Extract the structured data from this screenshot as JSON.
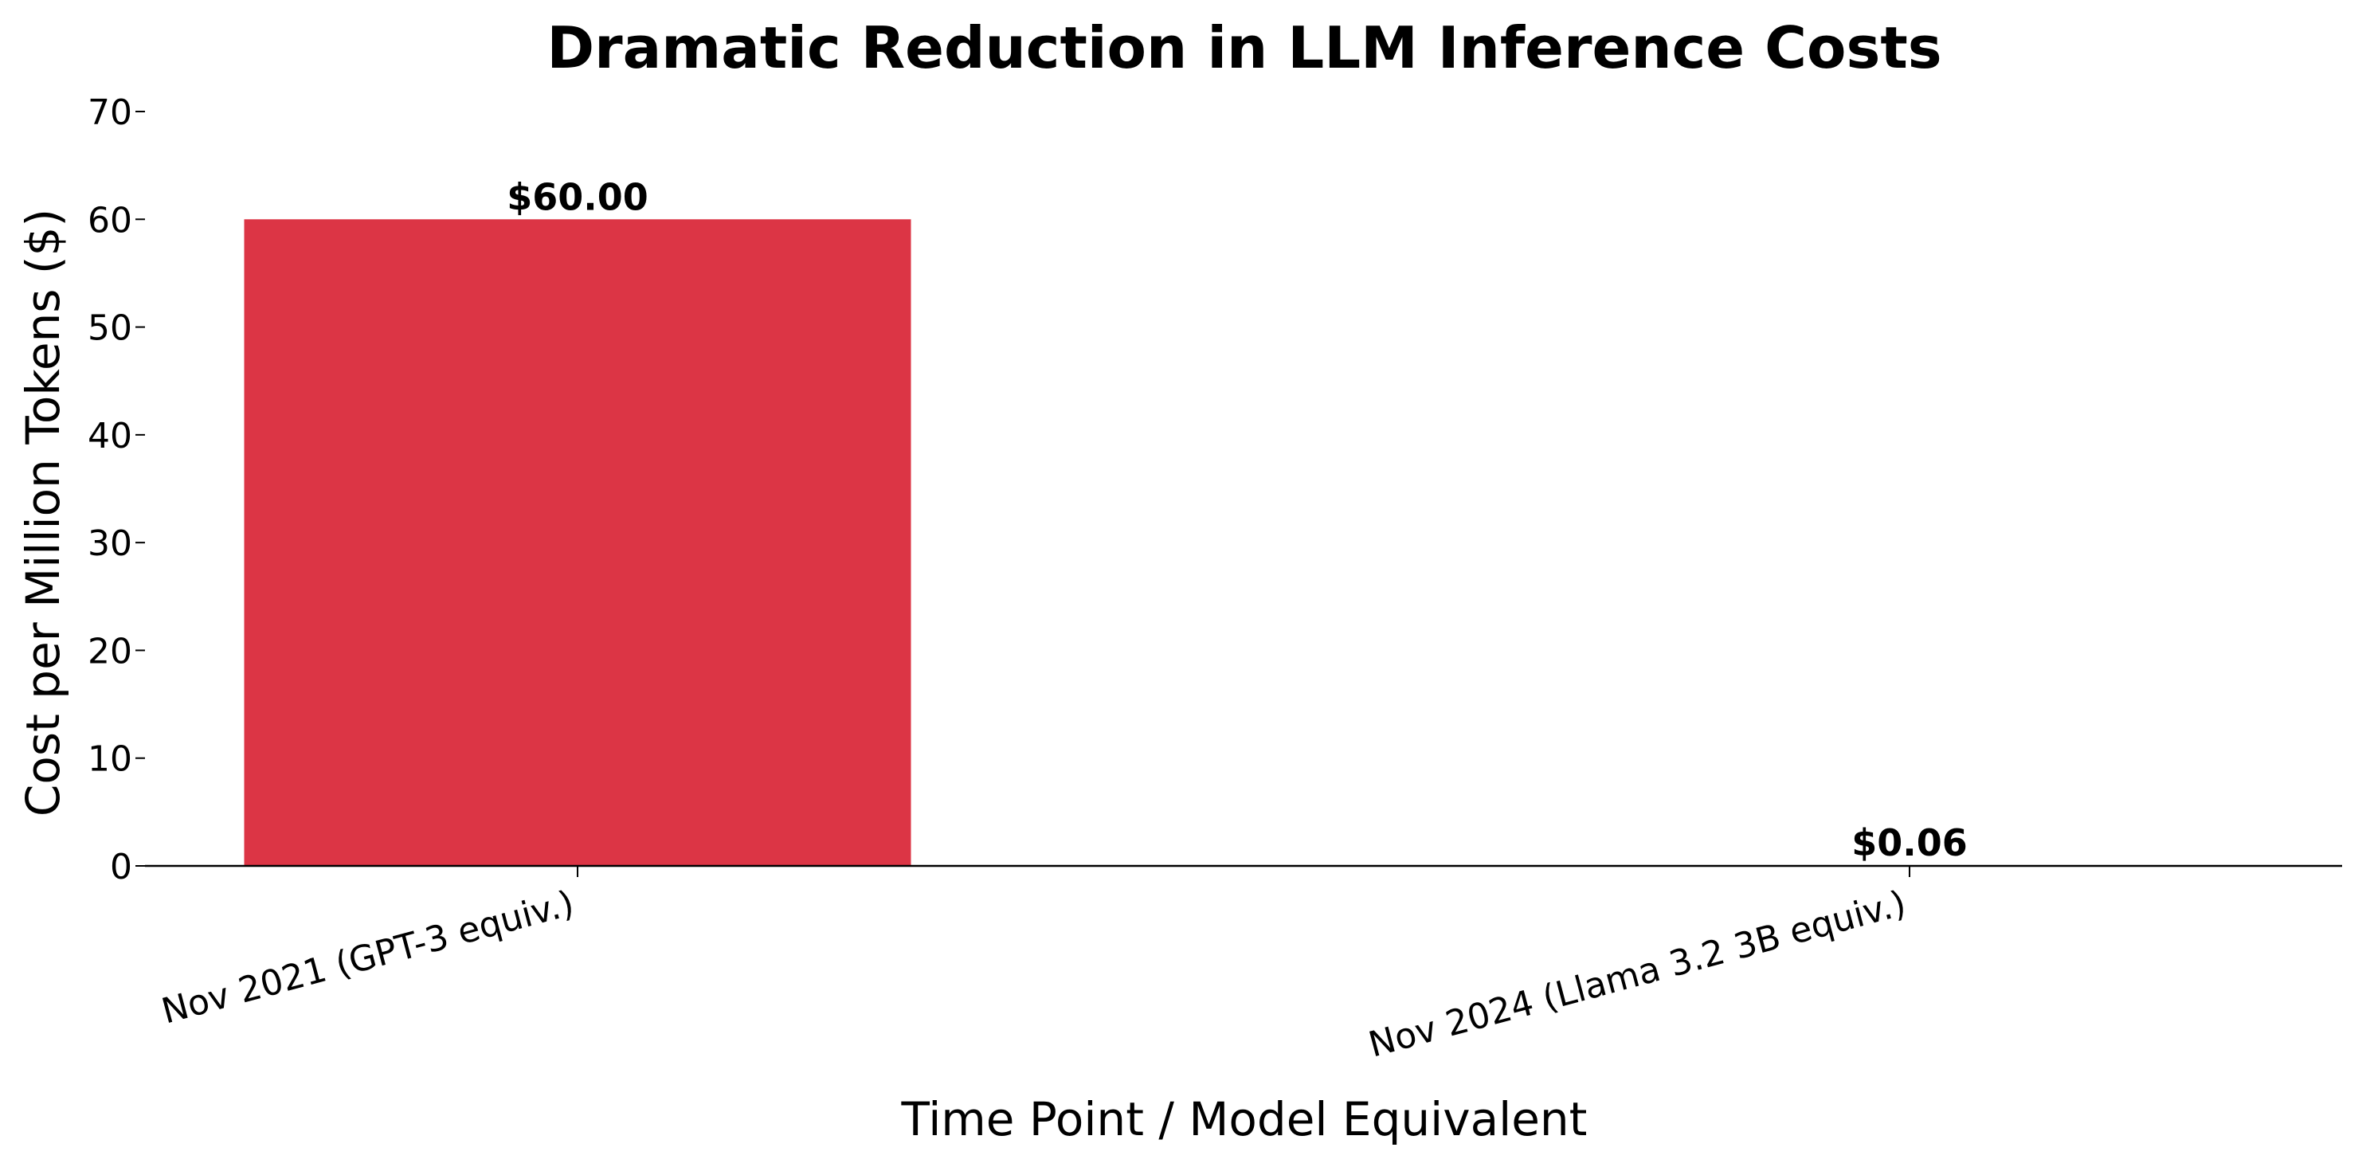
{
  "chart_data": {
    "type": "bar",
    "title": "Dramatic Reduction in LLM Inference Costs",
    "xlabel": "Time Point / Model Equivalent",
    "ylabel": "Cost per Million Tokens ($)",
    "categories": [
      "Nov 2021 (GPT-3 equiv.)",
      "Nov 2024 (Llama 3.2 3B equiv.)"
    ],
    "values": [
      60.0,
      0.06
    ],
    "data_labels": [
      "$60.00",
      "$0.06"
    ],
    "ylim": [
      0,
      70
    ],
    "yticks": [
      0,
      10,
      20,
      30,
      40,
      50,
      60,
      70
    ],
    "bar_colors": [
      "#dc3545",
      "#28a745"
    ],
    "grid": false,
    "legend": false
  }
}
